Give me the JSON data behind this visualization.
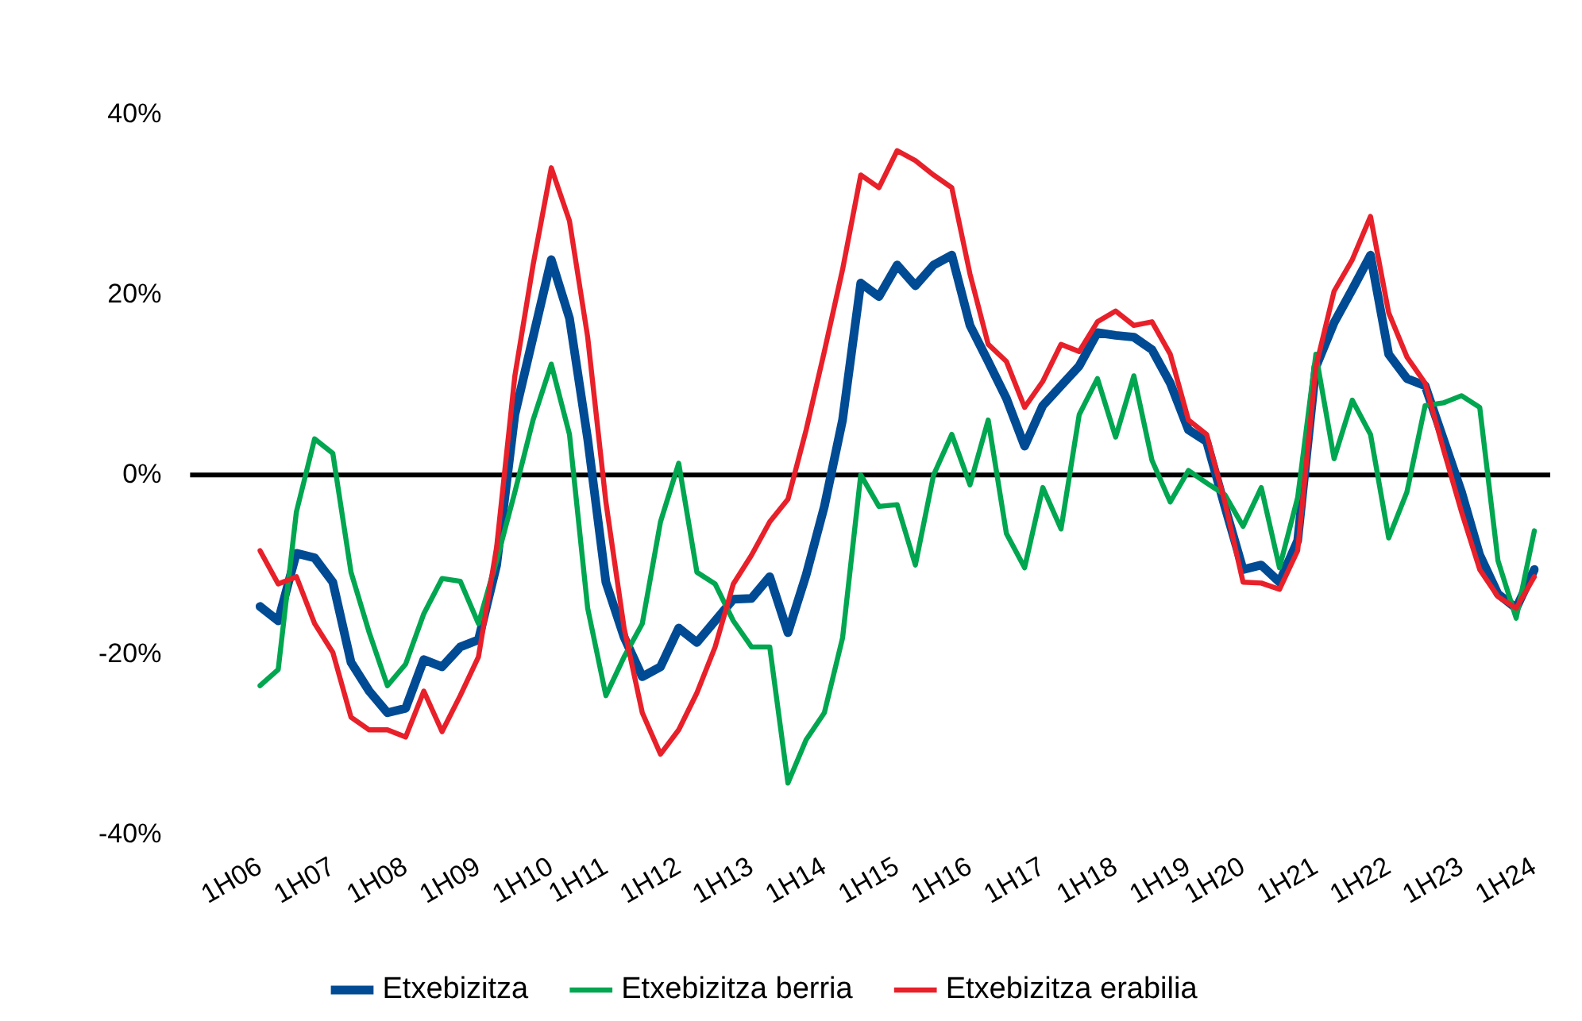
{
  "chart_data": {
    "type": "line",
    "categories": [
      "1H06",
      null,
      null,
      null,
      "1H07",
      null,
      null,
      null,
      "1H08",
      null,
      null,
      null,
      "1H09",
      null,
      null,
      null,
      "1H10",
      null,
      null,
      "1H11",
      null,
      null,
      null,
      "1H12",
      null,
      null,
      null,
      "1H13",
      null,
      null,
      null,
      "1H14",
      null,
      null,
      null,
      "1H15",
      null,
      null,
      null,
      "1H16",
      null,
      null,
      null,
      "1H17",
      null,
      null,
      null,
      "1H18",
      null,
      null,
      null,
      "1H19",
      null,
      null,
      "1H20",
      null,
      null,
      null,
      "1H21",
      null,
      null,
      null,
      "1H22",
      null,
      null,
      null,
      "1H23",
      null,
      null,
      null,
      "1H24"
    ],
    "series": [
      {
        "name": "Etxebizitza",
        "color": "#004b93",
        "values": [
          -14.6,
          -16.2,
          -8.7,
          -9.2,
          -11.9,
          -20.8,
          -24.0,
          -26.4,
          -25.9,
          -20.5,
          -21.3,
          -19.1,
          -18.3,
          -10,
          6.7,
          15.3,
          23.9,
          17.4,
          4,
          -11.9,
          -18,
          -22.4,
          -21.3,
          -17.0,
          -18.6,
          -16.2,
          -13.8,
          -13.7,
          -11.3,
          -17.5,
          -11.1,
          -3.5,
          6.1,
          21.3,
          19.8,
          23.3,
          21.0,
          23.3,
          24.4,
          16.6,
          12.6,
          8.5,
          3.2,
          7.7,
          9.9,
          12.1,
          15.8,
          15.5,
          15.3,
          13.9,
          10.2,
          5.0,
          3.7,
          -3.5,
          -10.5,
          -10,
          -11.9,
          -7.3,
          12.0,
          16.9,
          20.6,
          24.4,
          13.4,
          10.7,
          9.9,
          4.0,
          -1.9,
          -8.9,
          -13.2,
          -14.8,
          -10.5
        ]
      },
      {
        "name": "Etxebizitza berria",
        "color": "#00a650",
        "values": [
          -23.4,
          -21.6,
          -4.1,
          4.0,
          2.4,
          -10.8,
          -17.5,
          -23.4,
          -21.0,
          -15.4,
          -11.5,
          -11.8,
          -16.5,
          -9.5,
          -1.9,
          6.1,
          12.3,
          4.5,
          -14.8,
          -24.5,
          -20.2,
          -16.5,
          -5.2,
          1.3,
          -10.8,
          -12.1,
          -16.2,
          -19.1,
          -19.1,
          -34.2,
          -29.4,
          -26.4,
          -18.1,
          0,
          -3.5,
          -3.3,
          -10,
          0,
          4.5,
          -1.1,
          6.1,
          -6.5,
          -10.3,
          -1.4,
          -6.0,
          6.7,
          10.7,
          4.2,
          11.0,
          1.6,
          -3.0,
          0.5,
          -0.9,
          -2.2,
          -5.7,
          -1.4,
          -10.3,
          -2.5,
          13.4,
          1.8,
          8.3,
          4.5,
          -7.0,
          -1.9,
          7.7,
          8.0,
          8.8,
          7.5,
          -9.5,
          -15.9,
          -6.2
        ]
      },
      {
        "name": "Etxebizitza erabilia",
        "color": "#e8202a",
        "values": [
          -8.4,
          -12.1,
          -11.3,
          -16.5,
          -19.7,
          -26.9,
          -28.3,
          -28.3,
          -29.1,
          -24.0,
          -28.5,
          -24.5,
          -20.2,
          -8,
          11.0,
          23.3,
          34.1,
          28.2,
          15.3,
          -3,
          -17,
          -26.4,
          -31.0,
          -28.3,
          -24.2,
          -19.1,
          -12.1,
          -8.9,
          -5.2,
          -2.7,
          5.0,
          13.7,
          22.8,
          33.3,
          31.9,
          36.0,
          34.9,
          33.3,
          31.9,
          22.3,
          14.5,
          12.6,
          7.5,
          10.4,
          14.5,
          13.7,
          17.0,
          18.2,
          16.6,
          17.0,
          13.4,
          6.1,
          4.5,
          -3.0,
          -11.9,
          -12.0,
          -12.7,
          -8.4,
          12.0,
          20.4,
          23.9,
          28.7,
          18.0,
          13.1,
          10.2,
          2.9,
          -4.1,
          -10.5,
          -13.5,
          -14.8,
          -11.3
        ]
      }
    ],
    "ylim": [
      -40,
      40
    ],
    "yticks": [
      {
        "value": -40,
        "label": "-40%"
      },
      {
        "value": -20,
        "label": "-20%"
      },
      {
        "value": 0,
        "label": "0%"
      },
      {
        "value": 20,
        "label": "20%"
      },
      {
        "value": 40,
        "label": "40%"
      }
    ],
    "ref_lines": [
      {
        "axis": "y",
        "value": 0,
        "color": "#000000"
      }
    ],
    "legend": "bottom"
  }
}
